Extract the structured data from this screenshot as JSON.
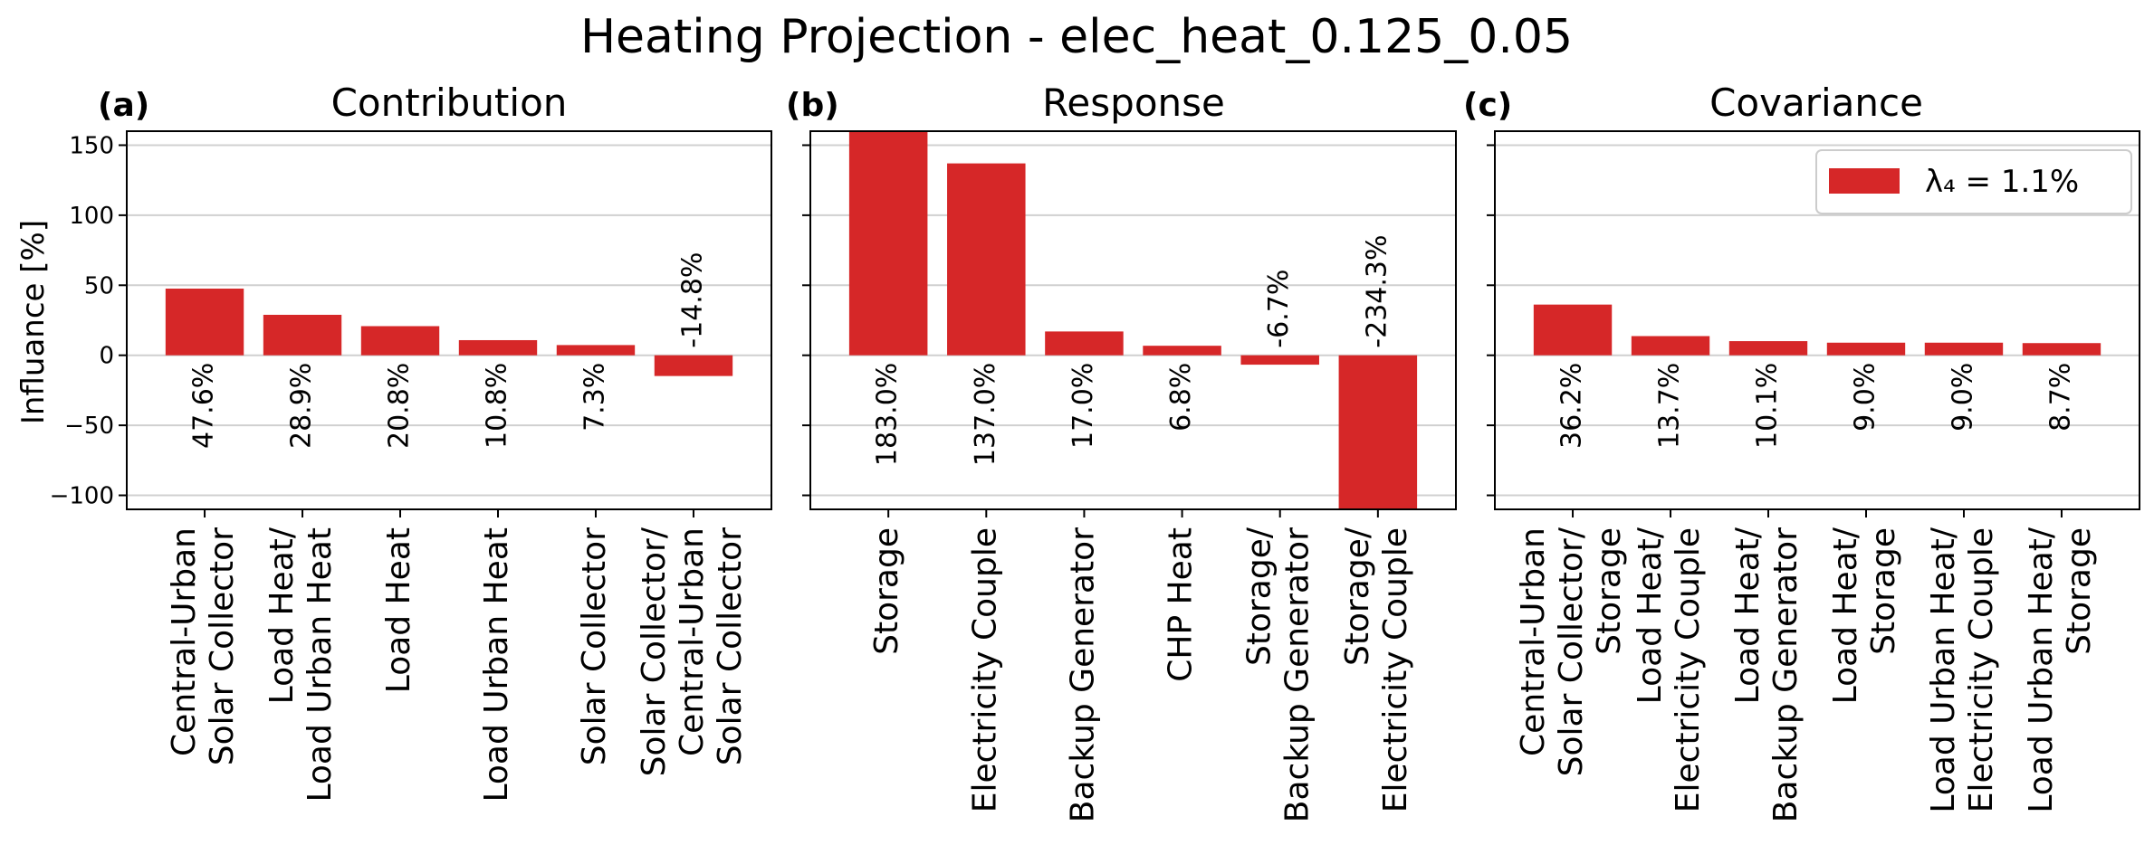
{
  "figure": {
    "title": "Heating Projection - elec_heat_0.125_0.05",
    "bar_color": "#d62728"
  },
  "legend": {
    "label": "λ₄ = 1.1%"
  },
  "chart_data": [
    {
      "type": "bar",
      "panel": "(a)",
      "title": "Contribution",
      "ylabel": "Influance [%]",
      "ylim": [
        -110,
        160
      ],
      "yticks": [
        150,
        100,
        50,
        0,
        -50,
        -100
      ],
      "ytick_labels": [
        "150",
        "100",
        "50",
        "0",
        "−50",
        "−100"
      ],
      "grid": true,
      "categories": [
        [
          "Central-Urban",
          "Solar Collector"
        ],
        [
          "Load Heat/",
          "Load Urban Heat"
        ],
        [
          "Load Heat"
        ],
        [
          "Load Urban Heat"
        ],
        [
          "Solar Collector"
        ],
        [
          "Solar Collector/",
          "Central-Urban",
          "Solar Collector"
        ]
      ],
      "values": [
        47.6,
        28.9,
        20.8,
        10.8,
        7.3,
        -14.8
      ],
      "value_labels": [
        "47.6%",
        "28.9%",
        "20.8%",
        "10.8%",
        "7.3%",
        "-14.8%"
      ]
    },
    {
      "type": "bar",
      "panel": "(b)",
      "title": "Response",
      "ylim": [
        -110,
        160
      ],
      "grid": true,
      "categories": [
        [
          "Storage"
        ],
        [
          "Electricity Couple"
        ],
        [
          "Backup Generator"
        ],
        [
          "CHP Heat"
        ],
        [
          "Storage/",
          "Backup Generator"
        ],
        [
          "Storage/",
          "Electricity Couple"
        ]
      ],
      "values": [
        183.0,
        137.0,
        17.0,
        6.8,
        -6.7,
        -234.3
      ],
      "value_labels": [
        "183.0%",
        "137.0%",
        "17.0%",
        "6.8%",
        "-6.7%",
        "-234.3%"
      ]
    },
    {
      "type": "bar",
      "panel": "(c)",
      "title": "Covariance",
      "ylim": [
        -110,
        160
      ],
      "grid": true,
      "legend": "top-right",
      "categories": [
        [
          "Central-Urban",
          "Solar Collector/",
          "Storage"
        ],
        [
          "Load Heat/",
          "Electricity Couple"
        ],
        [
          "Load Heat/",
          "Backup Generator"
        ],
        [
          "Load Heat/",
          "Storage"
        ],
        [
          "Load Urban Heat/",
          "Electricity Couple"
        ],
        [
          "Load Urban Heat/",
          "Storage"
        ]
      ],
      "values": [
        36.2,
        13.7,
        10.1,
        9.0,
        9.0,
        8.7
      ],
      "value_labels": [
        "36.2%",
        "13.7%",
        "10.1%",
        "9.0%",
        "9.0%",
        "8.7%"
      ]
    }
  ]
}
